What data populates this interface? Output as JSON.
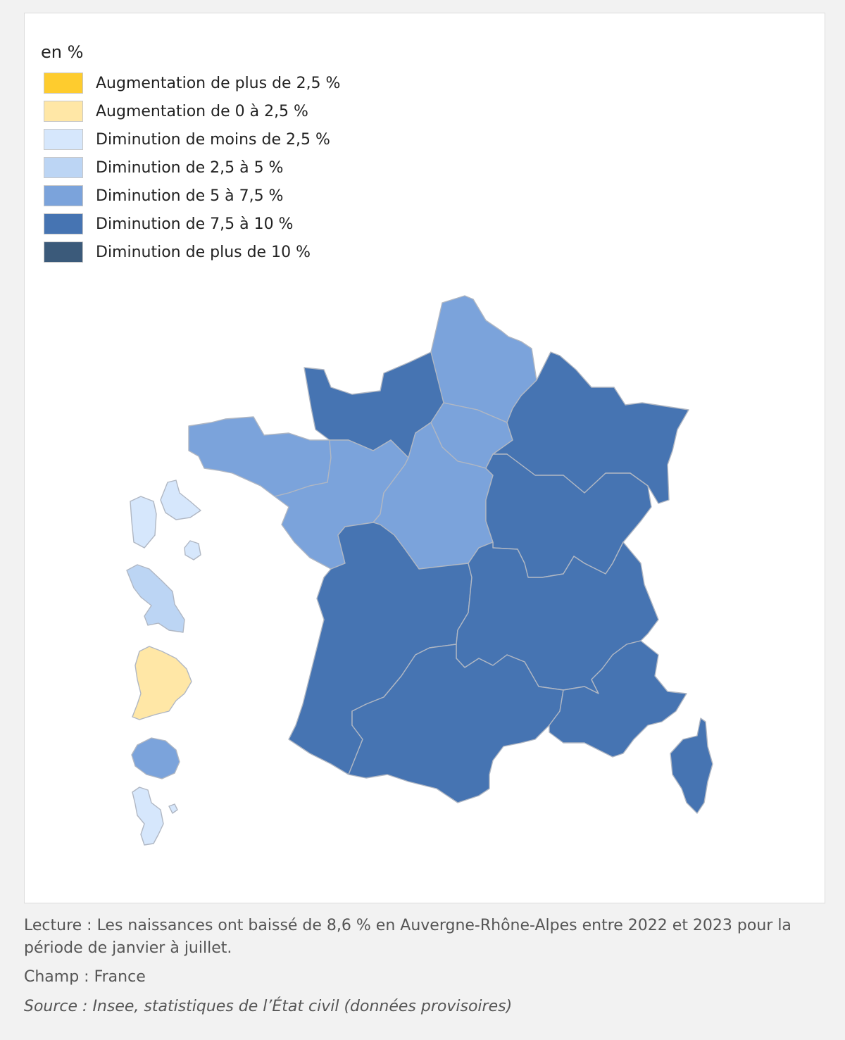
{
  "legend": {
    "title": "en %",
    "items": [
      {
        "label": "Augmentation de plus de 2,5 %",
        "color": "#fecc2e"
      },
      {
        "label": "Augmentation de 0 à 2,5 %",
        "color": "#ffe7a6"
      },
      {
        "label": "Diminution de moins de 2,5 %",
        "color": "#d6e7fc"
      },
      {
        "label": "Diminution de 2,5 à 5 %",
        "color": "#bcd5f4"
      },
      {
        "label": "Diminution de 5 à 7,5 %",
        "color": "#7ba3db"
      },
      {
        "label": "Diminution de 7,5 à 10 %",
        "color": "#4674b2"
      },
      {
        "label": "Diminution de plus de 10 %",
        "color": "#3b5a7a"
      }
    ]
  },
  "regions": [
    {
      "name": "Hauts-de-France",
      "class": 4
    },
    {
      "name": "Normandie",
      "class": 5
    },
    {
      "name": "Île-de-France",
      "class": 4
    },
    {
      "name": "Grand Est",
      "class": 5
    },
    {
      "name": "Bretagne",
      "class": 4
    },
    {
      "name": "Pays de la Loire",
      "class": 4
    },
    {
      "name": "Centre-Val de Loire",
      "class": 4
    },
    {
      "name": "Bourgogne-Franche-Comté",
      "class": 5
    },
    {
      "name": "Nouvelle-Aquitaine",
      "class": 5
    },
    {
      "name": "Auvergne-Rhône-Alpes",
      "class": 5
    },
    {
      "name": "Occitanie",
      "class": 5
    },
    {
      "name": "Provence-Alpes-Côte d'Azur",
      "class": 5
    },
    {
      "name": "Corse",
      "class": 5
    },
    {
      "name": "Guadeloupe",
      "class": 2
    },
    {
      "name": "Martinique",
      "class": 3
    },
    {
      "name": "Guyane",
      "class": 1
    },
    {
      "name": "La Réunion",
      "class": 4
    },
    {
      "name": "Mayotte",
      "class": 2
    }
  ],
  "caption": {
    "lecture": "Lecture : Les naissances ont baissé de 8,6 % en Auvergne-Rhône-Alpes entre 2022 et 2023 pour la période de janvier à juillet.",
    "champ": "Champ : France",
    "source": "Source : Insee, statistiques de l’État civil (données provisoires)"
  }
}
